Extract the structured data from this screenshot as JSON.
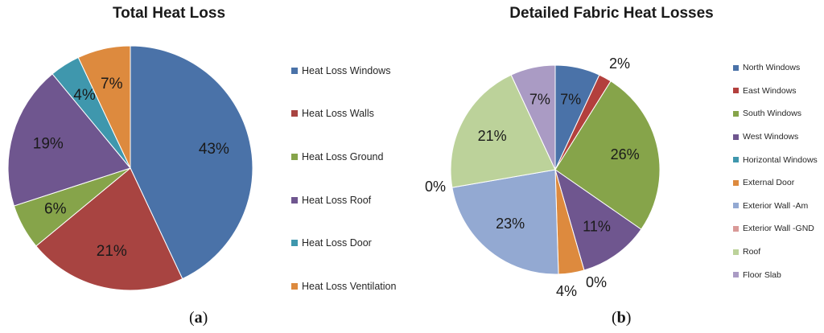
{
  "chart_data": [
    {
      "type": "pie",
      "title": "Total Heat Loss",
      "categories": [
        "Heat Loss Windows",
        "Heat Loss Walls",
        "Heat Loss Ground",
        "Heat Loss Roof",
        "Heat Loss Door",
        "Heat Loss Ventilation"
      ],
      "values": [
        43,
        21,
        6,
        19,
        4,
        7
      ],
      "labels": [
        "43%",
        "21%",
        "6%",
        "19%",
        "4%",
        "7%"
      ],
      "colors": [
        "#4a72a8",
        "#a84441",
        "#86a44a",
        "#6f568f",
        "#3f97ad",
        "#dd8a3e"
      ],
      "legend": "right",
      "caption": "a"
    },
    {
      "type": "pie",
      "title": "Detailed Fabric Heat Losses",
      "categories": [
        "North Windows",
        "East Windows",
        "South Windows",
        "West Windows",
        "Horizontal Windows",
        "External Door",
        "Exterior Wall -Am",
        "Exterior Wall -GND",
        "Roof",
        "Floor Slab"
      ],
      "values": [
        7,
        2,
        26,
        11,
        0,
        4,
        23,
        0,
        21,
        7
      ],
      "labels": [
        "7%",
        "2%",
        "26%",
        "11%",
        "0%",
        "4%",
        "23%",
        "0%",
        "21%",
        "7%"
      ],
      "colors": [
        "#4a72a8",
        "#b3403d",
        "#86a44a",
        "#6f568f",
        "#3f97ad",
        "#dd8a3e",
        "#93a9d2",
        "#d99a98",
        "#bcd29a",
        "#aa9bc4"
      ],
      "legend": "right",
      "caption": "b"
    }
  ]
}
